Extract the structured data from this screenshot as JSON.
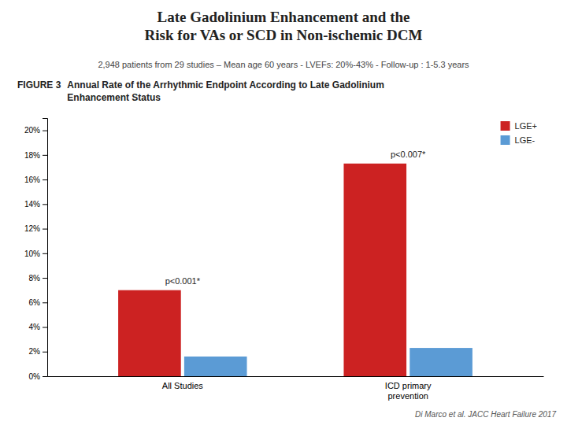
{
  "chart_data": {
    "type": "bar",
    "title": "Late Gadolinium Enhancement and the\nRisk for VAs or SCD in Non-ischemic DCM",
    "subtitle": "2,948 patients from 29 studies – Mean age 60 years - LVEFs:  20%-43%  - Follow-up : 1-5.3 years",
    "figure_label": "FIGURE 3",
    "figure_title": "Annual Rate of the Arrhythmic Endpoint According to Late Gadolinium\nEnhancement Status",
    "categories": [
      "All Studies",
      "ICD primary\nprevention"
    ],
    "series": [
      {
        "name": "LGE+",
        "color": "#CC2222",
        "values": [
          7.0,
          17.3
        ]
      },
      {
        "name": "LGE-",
        "color": "#5B9BD5",
        "values": [
          1.6,
          2.3
        ]
      }
    ],
    "annotations": [
      "p<0.001*",
      "p<0.007*"
    ],
    "ylim": [
      0,
      21
    ],
    "yticks": [
      {
        "value": 0,
        "label": "0%"
      },
      {
        "value": 2,
        "label": "2%"
      },
      {
        "value": 4,
        "label": "4%"
      },
      {
        "value": 6,
        "label": "6%"
      },
      {
        "value": 8,
        "label": "8%"
      },
      {
        "value": 10,
        "label": "10%"
      },
      {
        "value": 12,
        "label": "12%"
      },
      {
        "value": 14,
        "label": "14%"
      },
      {
        "value": 16,
        "label": "16%"
      },
      {
        "value": 18,
        "label": "18%"
      },
      {
        "value": 20,
        "label": "20%"
      }
    ],
    "grid": false,
    "legend": "upper right",
    "source": "Di Marco et al. JACC Heart Failure  2017"
  }
}
